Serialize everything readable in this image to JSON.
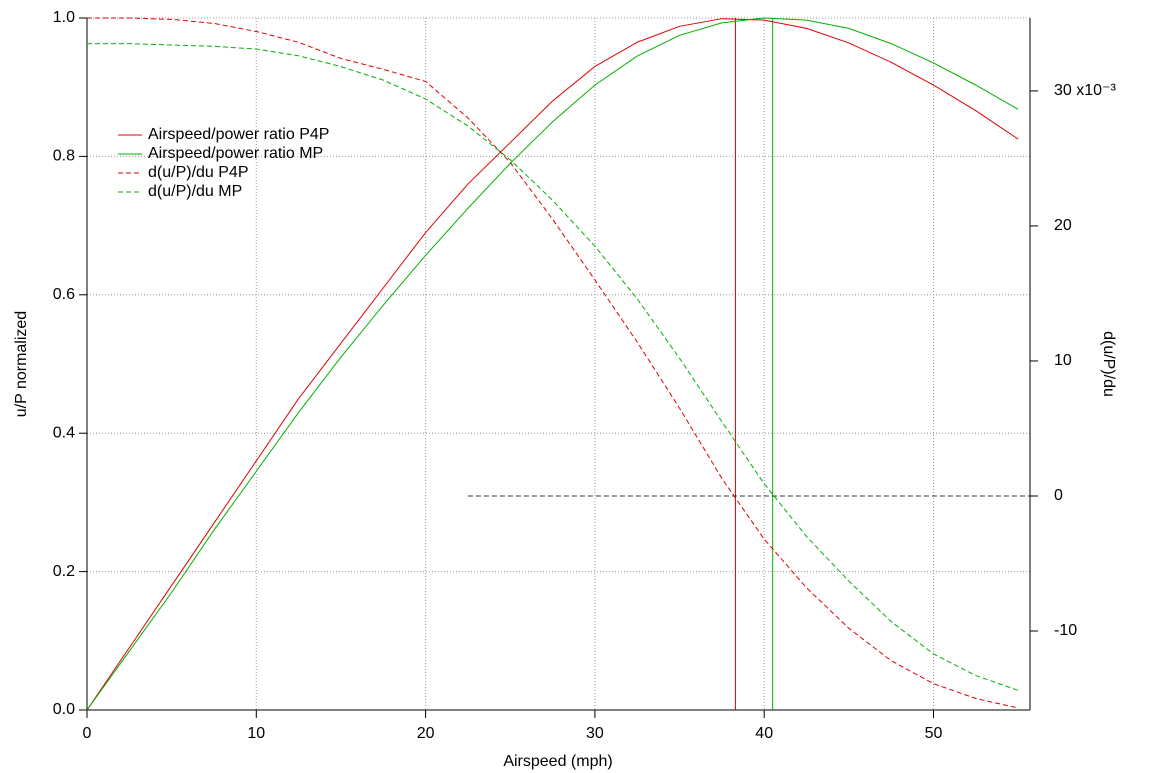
{
  "chart_data": {
    "type": "line",
    "x_label": "Airspeed (mph)",
    "y_label": "u/P normalized",
    "y2_label": "d(u/P)/du",
    "x": [
      0,
      2.5,
      5,
      7.5,
      10,
      12.5,
      15,
      17.5,
      20,
      22.5,
      25,
      27.5,
      30,
      32.5,
      35,
      37.5,
      40,
      42.5,
      45,
      47.5,
      50,
      52.5,
      55
    ],
    "series": [
      {
        "name": "Airspeed/power ratio P4P",
        "color": "#e00000",
        "style": "solid",
        "values": [
          0,
          0.09,
          0.18,
          0.27,
          0.36,
          0.45,
          0.53,
          0.61,
          0.69,
          0.76,
          0.82,
          0.88,
          0.93,
          0.965,
          0.988,
          0.999,
          0.997,
          0.985,
          0.964,
          0.936,
          0.903,
          0.866,
          0.825
        ]
      },
      {
        "name": "Airspeed/power ratio MP",
        "color": "#00b000",
        "style": "solid",
        "values": [
          0,
          0.085,
          0.17,
          0.26,
          0.345,
          0.43,
          0.51,
          0.585,
          0.657,
          0.725,
          0.79,
          0.85,
          0.903,
          0.945,
          0.975,
          0.993,
          1.0,
          0.997,
          0.985,
          0.963,
          0.935,
          0.903,
          0.868
        ]
      },
      {
        "name": "d(u/P)/du P4P",
        "color": "#e00000",
        "style": "dashed",
        "axis": "y2",
        "values": [
          35.4,
          35.4,
          35.3,
          35.0,
          34.4,
          33.6,
          32.4,
          31.6,
          30.7,
          28.0,
          24.7,
          20.5,
          16.0,
          11.4,
          6.5,
          1.3,
          -3.2,
          -6.8,
          -9.8,
          -12.2,
          -13.9,
          -15.0,
          -15.7
        ]
      },
      {
        "name": "d(u/P)/du MP",
        "color": "#00b000",
        "style": "dashed",
        "axis": "y2",
        "values": [
          33.5,
          33.5,
          33.4,
          33.3,
          33.1,
          32.6,
          31.8,
          30.8,
          29.4,
          27.4,
          24.9,
          21.9,
          18.5,
          14.6,
          10.2,
          5.5,
          0.9,
          -3.0,
          -6.3,
          -9.3,
          -11.7,
          -13.3,
          -14.4
        ]
      }
    ],
    "markers": [
      {
        "x": 38.3,
        "color": "#e00000"
      },
      {
        "x": 40.5,
        "color": "#00b000"
      }
    ],
    "reference_line": {
      "y2": 0,
      "x_from": 22.5,
      "color": "#333333"
    },
    "xlim": [
      0,
      55.7
    ],
    "xticks": [
      0,
      10,
      20,
      30,
      40,
      50
    ],
    "ylim": [
      0,
      1
    ],
    "yticks": [
      {
        "value": 0,
        "label": "0.0"
      },
      0.2,
      0.4,
      0.6,
      0.8,
      {
        "value": 1,
        "label": "1.0"
      }
    ],
    "y2lim": [
      -15.85,
      35.4
    ],
    "y2ticks": [
      -10,
      0,
      10,
      20,
      {
        "value": 30,
        "label": "30 x10⁻³"
      }
    ],
    "grid": true,
    "legend": "upper-left"
  }
}
